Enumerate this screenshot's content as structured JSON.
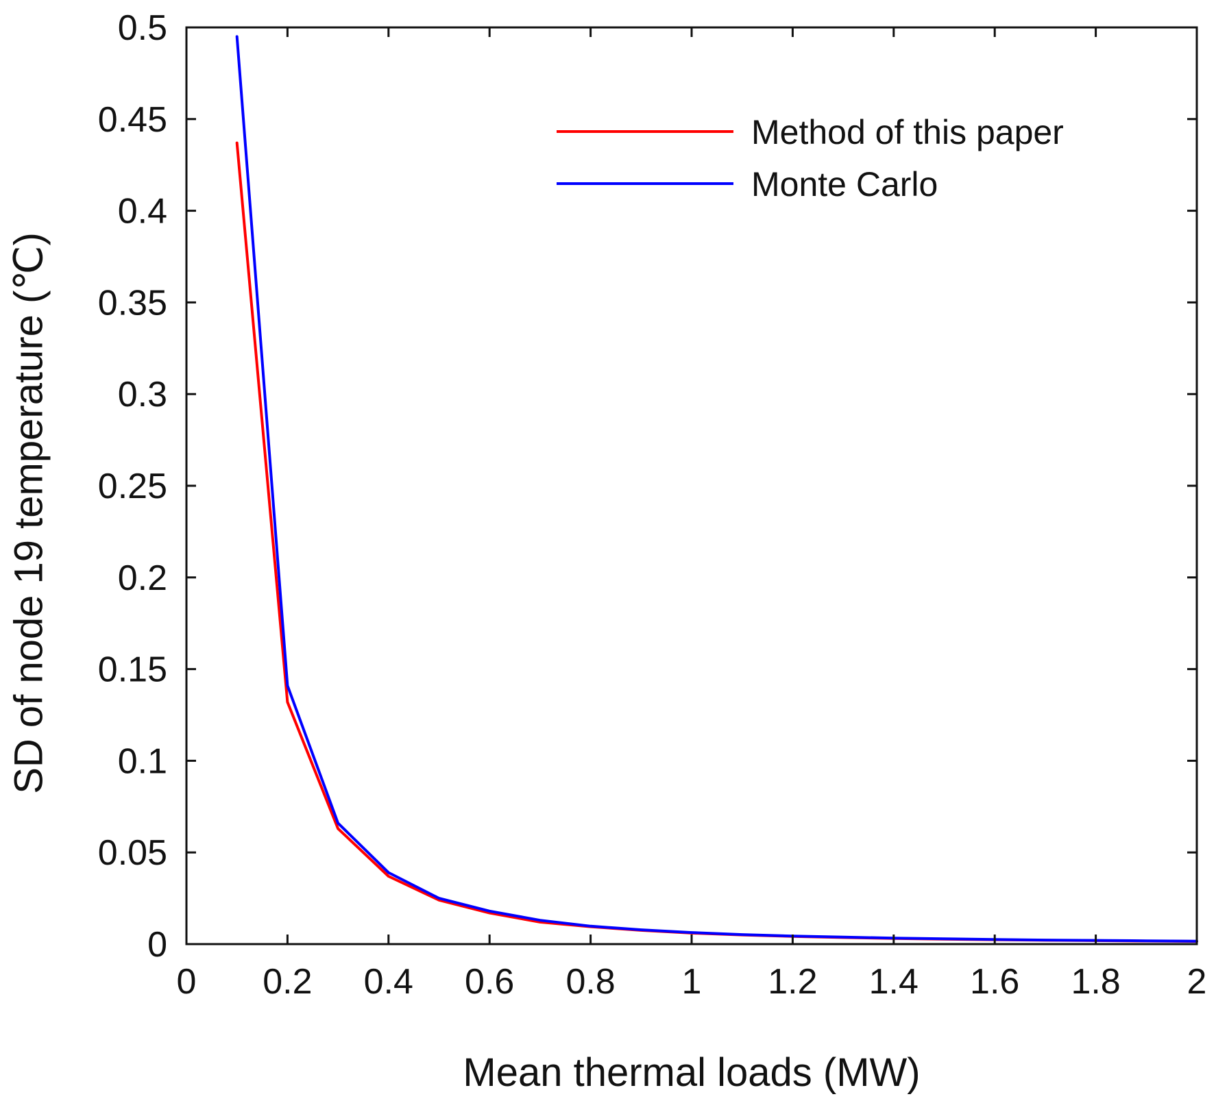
{
  "chart_data": {
    "type": "line",
    "title": "",
    "xlabel": "Mean thermal loads (MW)",
    "ylabel": "SD of node 19 temperature (℃)",
    "xlim": [
      0,
      2
    ],
    "ylim": [
      0,
      0.5
    ],
    "x_ticks": [
      0,
      0.2,
      0.4,
      0.6,
      0.8,
      1,
      1.2,
      1.4,
      1.6,
      1.8,
      2
    ],
    "x_tick_labels": [
      "0",
      "0.2",
      "0.4",
      "0.6",
      "0.8",
      "1",
      "1.2",
      "1.4",
      "1.6",
      "1.8",
      "2"
    ],
    "y_ticks": [
      0,
      0.05,
      0.1,
      0.15,
      0.2,
      0.25,
      0.3,
      0.35,
      0.4,
      0.45,
      0.5
    ],
    "y_tick_labels": [
      "0",
      "0.05",
      "0.1",
      "0.15",
      "0.2",
      "0.25",
      "0.3",
      "0.35",
      "0.4",
      "0.45",
      "0.5"
    ],
    "grid": false,
    "legend_position": "top-right",
    "x": [
      0.1,
      0.2,
      0.3,
      0.4,
      0.5,
      0.6,
      0.7,
      0.8,
      0.9,
      1.0,
      1.1,
      1.2,
      1.3,
      1.4,
      1.5,
      1.6,
      1.7,
      1.8,
      1.9,
      2.0
    ],
    "series": [
      {
        "name": "Method of this paper",
        "color": "#ff0000",
        "values": [
          0.437,
          0.132,
          0.063,
          0.037,
          0.024,
          0.017,
          0.012,
          0.0095,
          0.0075,
          0.006,
          0.005,
          0.0042,
          0.0036,
          0.0031,
          0.0027,
          0.0024,
          0.0021,
          0.0019,
          0.0017,
          0.0015
        ]
      },
      {
        "name": "Monte Carlo",
        "color": "#0000ff",
        "values": [
          0.495,
          0.141,
          0.066,
          0.039,
          0.025,
          0.018,
          0.013,
          0.0098,
          0.0078,
          0.0063,
          0.0052,
          0.0044,
          0.0038,
          0.0033,
          0.0029,
          0.0025,
          0.0022,
          0.002,
          0.0018,
          0.0016
        ]
      }
    ]
  }
}
